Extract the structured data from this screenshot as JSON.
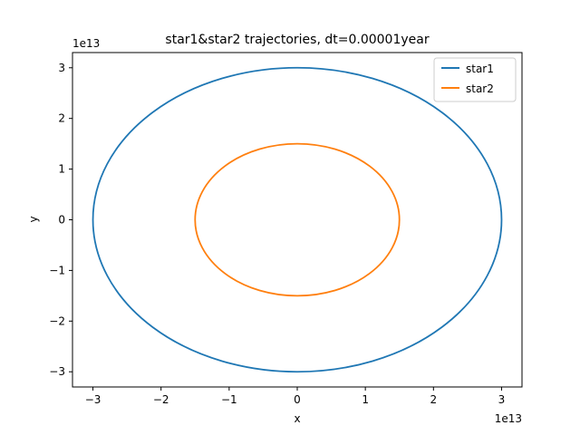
{
  "chart_data": {
    "type": "line",
    "title": "star1&star2 trajectories, dt=0.00001year",
    "xlabel": "x",
    "ylabel": "y",
    "x_offset_label": "1e13",
    "y_offset_label": "1e13",
    "xlim": [
      -3.3,
      3.3
    ],
    "ylim": [
      -3.3,
      3.3
    ],
    "xticks": [
      -3,
      -2,
      -1,
      0,
      1,
      2,
      3
    ],
    "yticks": [
      -3,
      -2,
      -1,
      0,
      1,
      2,
      3
    ],
    "xtick_labels": [
      "−3",
      "−2",
      "−1",
      "0",
      "1",
      "2",
      "3"
    ],
    "ytick_labels": [
      "−3",
      "−2",
      "−1",
      "0",
      "1",
      "2",
      "3"
    ],
    "grid": false,
    "legend_position": "top-right",
    "series": [
      {
        "name": "star1",
        "shape": "circle",
        "center": [
          0,
          0
        ],
        "radius": 3.0,
        "color": "#1f77b4"
      },
      {
        "name": "star2",
        "shape": "circle",
        "center": [
          0,
          0
        ],
        "radius": 1.5,
        "color": "#ff7f0e"
      }
    ]
  }
}
